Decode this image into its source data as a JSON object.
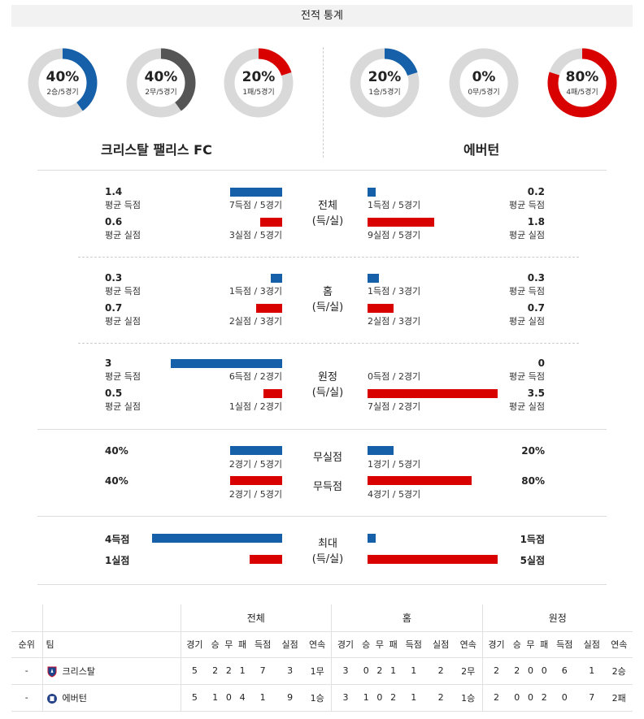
{
  "header": {
    "title": "전적 통계"
  },
  "donuts": [
    {
      "pct": "40%",
      "sub": "2승/5경기",
      "value": 0.4,
      "color": "#1560a8"
    },
    {
      "pct": "40%",
      "sub": "2무/5경기",
      "value": 0.4,
      "color": "#555555"
    },
    {
      "pct": "20%",
      "sub": "1패/5경기",
      "value": 0.2,
      "color": "#d90000"
    },
    {
      "pct": "20%",
      "sub": "1승/5경기",
      "value": 0.2,
      "color": "#1560a8"
    },
    {
      "pct": "0%",
      "sub": "0무/5경기",
      "value": 0.0,
      "color": "#555555"
    },
    {
      "pct": "80%",
      "sub": "4패/5경기",
      "value": 0.8,
      "color": "#d90000"
    }
  ],
  "teams": {
    "home": "크리스탈 팰리스 FC",
    "away": "에버턴"
  },
  "sections": [
    {
      "title": "전체",
      "subtitle": "(득/실)",
      "home": {
        "scored": "1.4",
        "scored_label": "평균 득점",
        "scored_count": "7득점 / 5경기",
        "scored_value": 1.4,
        "conceded": "0.6",
        "conceded_label": "평균 실점",
        "conceded_count": "3실점 / 5경기",
        "conceded_value": 0.6
      },
      "away": {
        "scored": "0.2",
        "scored_label": "평균 득점",
        "scored_count": "1득점 / 5경기",
        "scored_value": 0.2,
        "conceded": "1.8",
        "conceded_label": "평균 실점",
        "conceded_count": "9실점 / 5경기",
        "conceded_value": 1.8
      }
    },
    {
      "title": "홈",
      "subtitle": "(득/실)",
      "home": {
        "scored": "0.3",
        "scored_label": "평균 득점",
        "scored_count": "1득점 / 3경기",
        "scored_value": 0.3,
        "conceded": "0.7",
        "conceded_label": "평균 실점",
        "conceded_count": "2실점 / 3경기",
        "conceded_value": 0.7
      },
      "away": {
        "scored": "0.3",
        "scored_label": "평균 득점",
        "scored_count": "1득점 / 3경기",
        "scored_value": 0.3,
        "conceded": "0.7",
        "conceded_label": "평균 실점",
        "conceded_count": "2실점 / 3경기",
        "conceded_value": 0.7
      }
    },
    {
      "title": "원정",
      "subtitle": "(득/실)",
      "home": {
        "scored": "3",
        "scored_label": "평균 득점",
        "scored_count": "6득점 / 2경기",
        "scored_value": 3,
        "conceded": "0.5",
        "conceded_label": "평균 실점",
        "conceded_count": "1실점 / 2경기",
        "conceded_value": 0.5
      },
      "away": {
        "scored": "0",
        "scored_label": "평균 득점",
        "scored_count": "0득점 / 2경기",
        "scored_value": 0,
        "conceded": "3.5",
        "conceded_label": "평균 실점",
        "conceded_count": "7실점 / 2경기",
        "conceded_value": 3.5
      }
    }
  ],
  "clean": {
    "title1": "무실점",
    "title2": "무득점",
    "home": {
      "cs": "40%",
      "cs_count": "2경기 / 5경기",
      "cs_value": 0.4,
      "ng": "40%",
      "ng_count": "2경기 / 5경기",
      "ng_value": 0.4
    },
    "away": {
      "cs": "20%",
      "cs_count": "1경기 / 5경기",
      "cs_value": 0.2,
      "ng": "80%",
      "ng_count": "4경기 / 5경기",
      "ng_value": 0.8
    }
  },
  "max": {
    "title": "최대",
    "subtitle": "(득/실)",
    "home": {
      "scored": "4득점",
      "scored_value": 4,
      "conceded": "1실점",
      "conceded_value": 1
    },
    "away": {
      "scored": "1득점",
      "scored_value": 1,
      "conceded": "5실점",
      "conceded_value": 5
    }
  },
  "standings": {
    "groups": [
      "전체",
      "홈",
      "원정"
    ],
    "columns": [
      "순위",
      "팀",
      "경기",
      "승",
      "무",
      "패",
      "득점",
      "실점",
      "연속"
    ],
    "rows": [
      {
        "rank": "-",
        "team": "크리스탈",
        "all": [
          "5",
          "2",
          "2",
          "1",
          "7",
          "3",
          "1무"
        ],
        "home": [
          "3",
          "0",
          "2",
          "1",
          "1",
          "2",
          "2무"
        ],
        "away": [
          "2",
          "2",
          "0",
          "0",
          "6",
          "1",
          "2승"
        ]
      },
      {
        "rank": "-",
        "team": "에버턴",
        "all": [
          "5",
          "1",
          "0",
          "4",
          "1",
          "9",
          "1승"
        ],
        "home": [
          "3",
          "1",
          "0",
          "2",
          "1",
          "2",
          "1승"
        ],
        "away": [
          "2",
          "0",
          "0",
          "2",
          "0",
          "7",
          "2패"
        ]
      }
    ]
  }
}
